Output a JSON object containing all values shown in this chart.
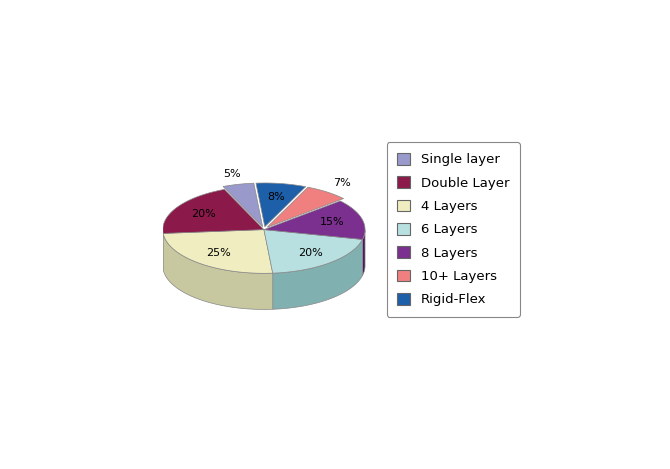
{
  "labels": [
    "Single layer",
    "Double Layer",
    "4 Layers",
    "6 Layers",
    "8 Layers",
    "10+ Layers",
    "Rigid-Flex"
  ],
  "values": [
    5,
    20,
    25,
    20,
    15,
    7,
    8
  ],
  "colors": [
    "#9999cc",
    "#8b1a4a",
    "#f0edc0",
    "#b8e0e0",
    "#7b2f8e",
    "#f08080",
    "#1e5faa"
  ],
  "dark_colors": [
    "#6666aa",
    "#5a0f2f",
    "#c8c8a0",
    "#80b0b0",
    "#4a1a5e",
    "#c06060",
    "#0e3f7a"
  ],
  "explode_left": [
    true,
    false,
    false,
    false,
    false,
    true,
    true
  ],
  "startangle": 95,
  "depth": 0.18,
  "legend_labels": [
    "Single layer",
    "Double Layer",
    "4 Layers",
    "6 Layers",
    "8 Layers",
    "10+ Layers",
    "Rigid-Flex"
  ],
  "legend_colors": [
    "#9999cc",
    "#8b1a4a",
    "#f0edc0",
    "#b8e0e0",
    "#7b2f8e",
    "#f08080",
    "#1e5faa"
  ],
  "pct_labels": [
    "5%",
    "20%",
    "25%",
    "20%",
    "15%",
    "7%",
    "8%"
  ]
}
